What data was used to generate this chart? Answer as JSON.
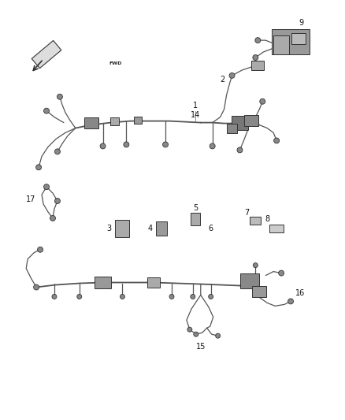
{
  "bg_color": "#ffffff",
  "fig_width": 4.38,
  "fig_height": 5.33,
  "dpi": 100,
  "wire_color": "#555555",
  "connector_fc": "#888888",
  "connector_ec": "#333333",
  "box_fc": "#aaaaaa",
  "box_ec": "#333333",
  "label_color": "#111111",
  "label_fontsize": 7,
  "lw_main": 1.3,
  "lw_branch": 0.9
}
